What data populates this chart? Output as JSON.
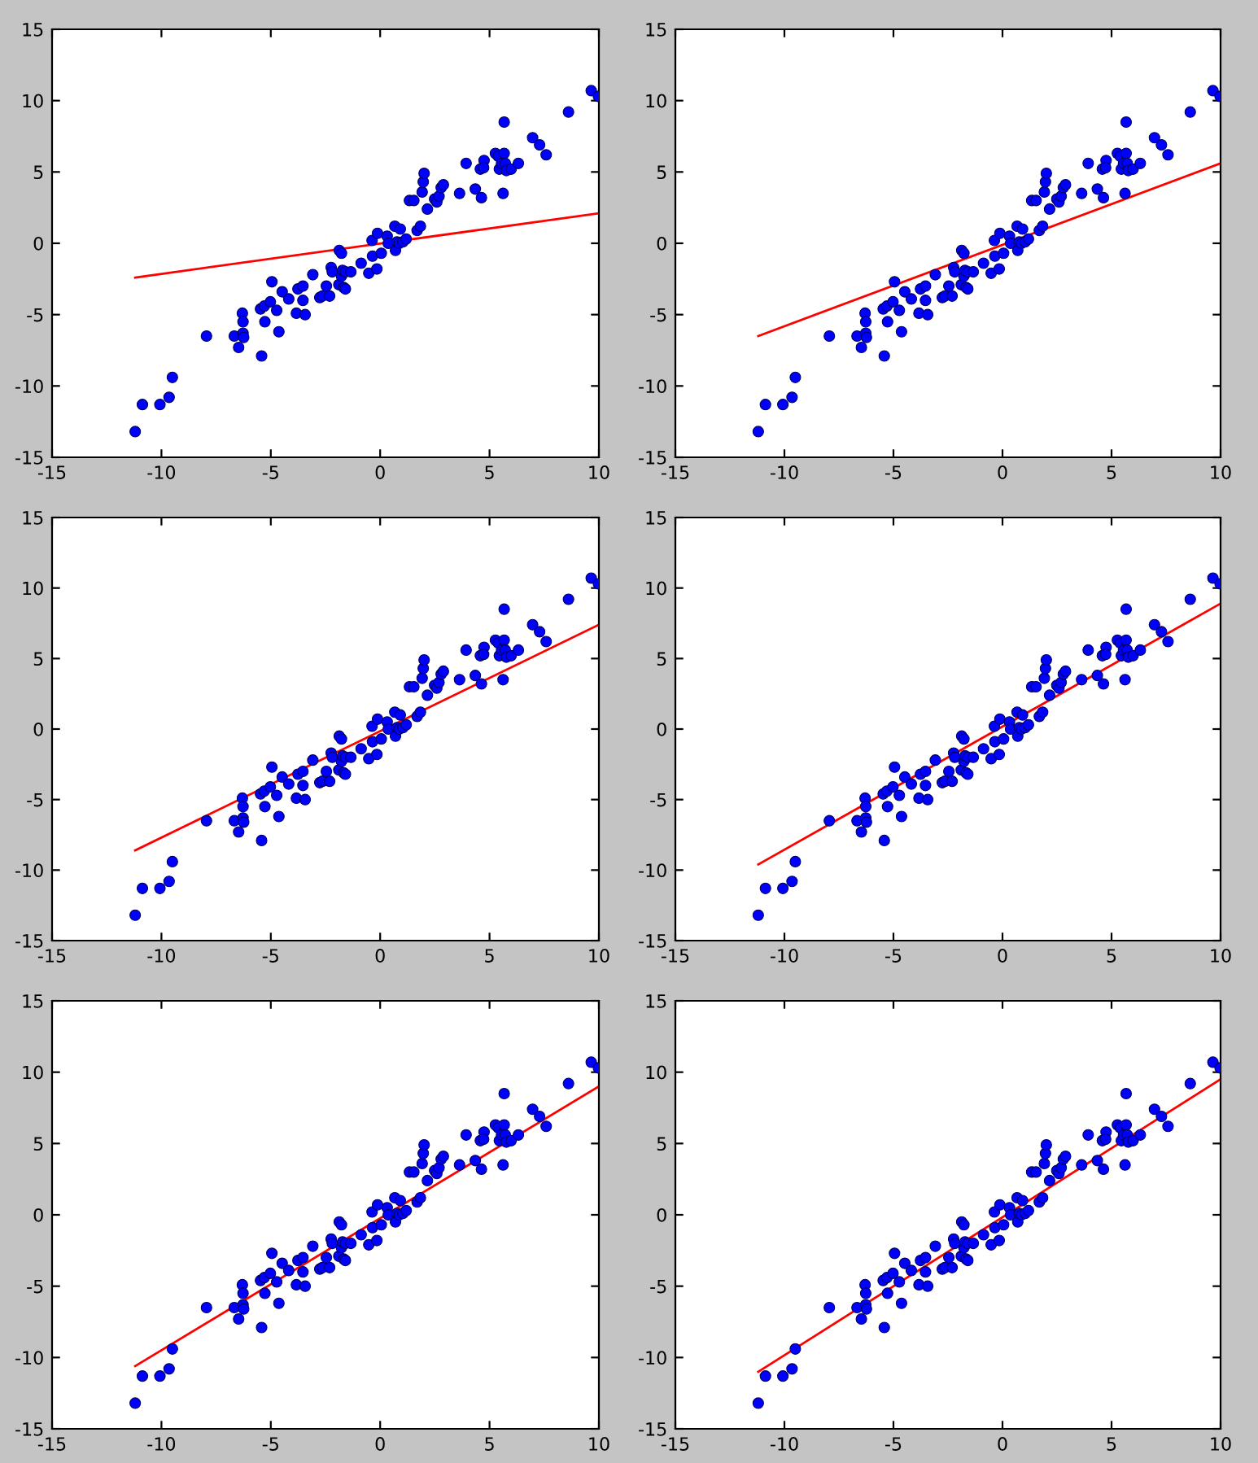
{
  "chart_data": [
    {
      "type": "scatter",
      "xlim": [
        -15,
        10
      ],
      "ylim": [
        -15,
        15
      ],
      "xticks": [
        -15,
        -10,
        -5,
        0,
        5,
        10
      ],
      "yticks": [
        -15,
        -10,
        -5,
        0,
        5,
        10,
        15
      ],
      "grid": false,
      "series": [
        {
          "marker": "circle",
          "color": "#0000ff",
          "x": [
            -11.2,
            -10.87,
            -10.07,
            -9.65,
            -9.5,
            -7.94,
            -6.67,
            -6.47,
            -6.3,
            -6.27,
            -6.27,
            -6.24,
            -5.42,
            -5.47,
            -5.3,
            -5.02,
            -4.95,
            -5.27,
            -4.73,
            -4.63,
            -4.48,
            -4.18,
            -3.83,
            -3.76,
            -3.53,
            -3.53,
            -3.43,
            -3.08,
            -2.76,
            -2.64,
            -2.46,
            -2.31,
            -2.24,
            -2.19,
            -1.87,
            -1.77,
            -1.89,
            -1.77,
            -1.72,
            -1.67,
            -1.59,
            -1.59,
            -1.34,
            -0.87,
            -0.52,
            -0.37,
            -0.35,
            -0.15,
            -0.12,
            0.05,
            0.32,
            0.37,
            0.67,
            0.7,
            0.77,
            0.92,
            0.87,
            1.04,
            1.19,
            1.34,
            1.54,
            1.69,
            1.84,
            1.92,
            1.97,
            2.01,
            2.16,
            2.49,
            2.59,
            2.69,
            2.79,
            2.89,
            3.63,
            3.93,
            4.35,
            4.58,
            4.63,
            4.75,
            4.73,
            5.27,
            5.4,
            5.45,
            5.55,
            5.67,
            5.67,
            5.62,
            5.72,
            5.77,
            5.99,
            6.32,
            6.97,
            7.29,
            7.59,
            8.61,
            9.65,
            9.98
          ],
          "values": [
            -13.2,
            -11.3,
            -11.3,
            -10.8,
            -9.4,
            -6.5,
            -6.5,
            -7.3,
            -4.9,
            -5.5,
            -6.3,
            -6.6,
            -7.9,
            -4.6,
            -4.4,
            -4.1,
            -2.7,
            -5.5,
            -4.7,
            -6.2,
            -3.4,
            -3.9,
            -4.9,
            -3.2,
            -3.0,
            -4.0,
            -5.0,
            -2.2,
            -3.8,
            -3.7,
            -3.0,
            -3.7,
            -1.7,
            -2.0,
            -0.5,
            -0.7,
            -2.9,
            -2.3,
            -1.9,
            -3.1,
            -3.2,
            -2.0,
            -2.0,
            -1.4,
            -2.1,
            0.2,
            -0.9,
            -1.8,
            0.7,
            -0.7,
            0.5,
            0.0,
            1.2,
            -0.5,
            0.1,
            1.0,
            0.0,
            0.1,
            0.3,
            3.0,
            3.0,
            0.9,
            1.2,
            3.6,
            4.3,
            4.9,
            2.4,
            3.1,
            2.9,
            3.3,
            3.9,
            4.1,
            3.5,
            5.6,
            3.8,
            5.2,
            3.2,
            5.8,
            5.3,
            6.3,
            6.1,
            5.2,
            5.6,
            6.3,
            8.5,
            3.5,
            5.6,
            5.1,
            5.2,
            5.6,
            7.4,
            6.9,
            6.2,
            9.2,
            10.7,
            10.3
          ]
        },
        {
          "type": "line",
          "marker": "none",
          "color": "#ff0000",
          "x": [
            -11.2,
            10
          ],
          "values": [
            -2.4,
            2.1
          ]
        }
      ]
    },
    {
      "type": "scatter",
      "xlim": [
        -15,
        10
      ],
      "ylim": [
        -15,
        15
      ],
      "xticks": [
        -15,
        -10,
        -5,
        0,
        5,
        10
      ],
      "yticks": [
        -15,
        -10,
        -5,
        0,
        5,
        10,
        15
      ],
      "grid": false,
      "series": [
        {
          "marker": "circle",
          "color": "#0000ff",
          "x": [
            -11.2,
            -10.87,
            -10.07,
            -9.65,
            -9.5,
            -7.94,
            -6.67,
            -6.47,
            -6.3,
            -6.27,
            -6.27,
            -6.24,
            -5.42,
            -5.47,
            -5.3,
            -5.02,
            -4.95,
            -5.27,
            -4.73,
            -4.63,
            -4.48,
            -4.18,
            -3.83,
            -3.76,
            -3.53,
            -3.53,
            -3.43,
            -3.08,
            -2.76,
            -2.64,
            -2.46,
            -2.31,
            -2.24,
            -2.19,
            -1.87,
            -1.77,
            -1.89,
            -1.77,
            -1.72,
            -1.67,
            -1.59,
            -1.59,
            -1.34,
            -0.87,
            -0.52,
            -0.37,
            -0.35,
            -0.15,
            -0.12,
            0.05,
            0.32,
            0.37,
            0.67,
            0.7,
            0.77,
            0.92,
            0.87,
            1.04,
            1.19,
            1.34,
            1.54,
            1.69,
            1.84,
            1.92,
            1.97,
            2.01,
            2.16,
            2.49,
            2.59,
            2.69,
            2.79,
            2.89,
            3.63,
            3.93,
            4.35,
            4.58,
            4.63,
            4.75,
            4.73,
            5.27,
            5.4,
            5.45,
            5.55,
            5.67,
            5.67,
            5.62,
            5.72,
            5.77,
            5.99,
            6.32,
            6.97,
            7.29,
            7.59,
            8.61,
            9.65,
            9.98
          ],
          "values": [
            -13.2,
            -11.3,
            -11.3,
            -10.8,
            -9.4,
            -6.5,
            -6.5,
            -7.3,
            -4.9,
            -5.5,
            -6.3,
            -6.6,
            -7.9,
            -4.6,
            -4.4,
            -4.1,
            -2.7,
            -5.5,
            -4.7,
            -6.2,
            -3.4,
            -3.9,
            -4.9,
            -3.2,
            -3.0,
            -4.0,
            -5.0,
            -2.2,
            -3.8,
            -3.7,
            -3.0,
            -3.7,
            -1.7,
            -2.0,
            -0.5,
            -0.7,
            -2.9,
            -2.3,
            -1.9,
            -3.1,
            -3.2,
            -2.0,
            -2.0,
            -1.4,
            -2.1,
            0.2,
            -0.9,
            -1.8,
            0.7,
            -0.7,
            0.5,
            0.0,
            1.2,
            -0.5,
            0.1,
            1.0,
            0.0,
            0.1,
            0.3,
            3.0,
            3.0,
            0.9,
            1.2,
            3.6,
            4.3,
            4.9,
            2.4,
            3.1,
            2.9,
            3.3,
            3.9,
            4.1,
            3.5,
            5.6,
            3.8,
            5.2,
            3.2,
            5.8,
            5.3,
            6.3,
            6.1,
            5.2,
            5.6,
            6.3,
            8.5,
            3.5,
            5.6,
            5.1,
            5.2,
            5.6,
            7.4,
            6.9,
            6.2,
            9.2,
            10.7,
            10.3
          ]
        },
        {
          "type": "line",
          "marker": "none",
          "color": "#ff0000",
          "x": [
            -11.2,
            10
          ],
          "values": [
            -6.5,
            5.6
          ]
        }
      ]
    },
    {
      "type": "scatter",
      "xlim": [
        -15,
        10
      ],
      "ylim": [
        -15,
        15
      ],
      "xticks": [
        -15,
        -10,
        -5,
        0,
        5,
        10
      ],
      "yticks": [
        -15,
        -10,
        -5,
        0,
        5,
        10,
        15
      ],
      "grid": false,
      "series": [
        {
          "marker": "circle",
          "color": "#0000ff",
          "x": [
            -11.2,
            -10.87,
            -10.07,
            -9.65,
            -9.5,
            -7.94,
            -6.67,
            -6.47,
            -6.3,
            -6.27,
            -6.27,
            -6.24,
            -5.42,
            -5.47,
            -5.3,
            -5.02,
            -4.95,
            -5.27,
            -4.73,
            -4.63,
            -4.48,
            -4.18,
            -3.83,
            -3.76,
            -3.53,
            -3.53,
            -3.43,
            -3.08,
            -2.76,
            -2.64,
            -2.46,
            -2.31,
            -2.24,
            -2.19,
            -1.87,
            -1.77,
            -1.89,
            -1.77,
            -1.72,
            -1.67,
            -1.59,
            -1.59,
            -1.34,
            -0.87,
            -0.52,
            -0.37,
            -0.35,
            -0.15,
            -0.12,
            0.05,
            0.32,
            0.37,
            0.67,
            0.7,
            0.77,
            0.92,
            0.87,
            1.04,
            1.19,
            1.34,
            1.54,
            1.69,
            1.84,
            1.92,
            1.97,
            2.01,
            2.16,
            2.49,
            2.59,
            2.69,
            2.79,
            2.89,
            3.63,
            3.93,
            4.35,
            4.58,
            4.63,
            4.75,
            4.73,
            5.27,
            5.4,
            5.45,
            5.55,
            5.67,
            5.67,
            5.62,
            5.72,
            5.77,
            5.99,
            6.32,
            6.97,
            7.29,
            7.59,
            8.61,
            9.65,
            9.98
          ],
          "values": [
            -13.2,
            -11.3,
            -11.3,
            -10.8,
            -9.4,
            -6.5,
            -6.5,
            -7.3,
            -4.9,
            -5.5,
            -6.3,
            -6.6,
            -7.9,
            -4.6,
            -4.4,
            -4.1,
            -2.7,
            -5.5,
            -4.7,
            -6.2,
            -3.4,
            -3.9,
            -4.9,
            -3.2,
            -3.0,
            -4.0,
            -5.0,
            -2.2,
            -3.8,
            -3.7,
            -3.0,
            -3.7,
            -1.7,
            -2.0,
            -0.5,
            -0.7,
            -2.9,
            -2.3,
            -1.9,
            -3.1,
            -3.2,
            -2.0,
            -2.0,
            -1.4,
            -2.1,
            0.2,
            -0.9,
            -1.8,
            0.7,
            -0.7,
            0.5,
            0.0,
            1.2,
            -0.5,
            0.1,
            1.0,
            0.0,
            0.1,
            0.3,
            3.0,
            3.0,
            0.9,
            1.2,
            3.6,
            4.3,
            4.9,
            2.4,
            3.1,
            2.9,
            3.3,
            3.9,
            4.1,
            3.5,
            5.6,
            3.8,
            5.2,
            3.2,
            5.8,
            5.3,
            6.3,
            6.1,
            5.2,
            5.6,
            6.3,
            8.5,
            3.5,
            5.6,
            5.1,
            5.2,
            5.6,
            7.4,
            6.9,
            6.2,
            9.2,
            10.7,
            10.3
          ]
        },
        {
          "type": "line",
          "marker": "none",
          "color": "#ff0000",
          "x": [
            -11.2,
            10
          ],
          "values": [
            -8.6,
            7.4
          ]
        }
      ]
    },
    {
      "type": "scatter",
      "xlim": [
        -15,
        10
      ],
      "ylim": [
        -15,
        15
      ],
      "xticks": [
        -15,
        -10,
        -5,
        0,
        5,
        10
      ],
      "yticks": [
        -15,
        -10,
        -5,
        0,
        5,
        10,
        15
      ],
      "grid": false,
      "series": [
        {
          "marker": "circle",
          "color": "#0000ff",
          "x": [
            -11.2,
            -10.87,
            -10.07,
            -9.65,
            -9.5,
            -7.94,
            -6.67,
            -6.47,
            -6.3,
            -6.27,
            -6.27,
            -6.24,
            -5.42,
            -5.47,
            -5.3,
            -5.02,
            -4.95,
            -5.27,
            -4.73,
            -4.63,
            -4.48,
            -4.18,
            -3.83,
            -3.76,
            -3.53,
            -3.53,
            -3.43,
            -3.08,
            -2.76,
            -2.64,
            -2.46,
            -2.31,
            -2.24,
            -2.19,
            -1.87,
            -1.77,
            -1.89,
            -1.77,
            -1.72,
            -1.67,
            -1.59,
            -1.59,
            -1.34,
            -0.87,
            -0.52,
            -0.37,
            -0.35,
            -0.15,
            -0.12,
            0.05,
            0.32,
            0.37,
            0.67,
            0.7,
            0.77,
            0.92,
            0.87,
            1.04,
            1.19,
            1.34,
            1.54,
            1.69,
            1.84,
            1.92,
            1.97,
            2.01,
            2.16,
            2.49,
            2.59,
            2.69,
            2.79,
            2.89,
            3.63,
            3.93,
            4.35,
            4.58,
            4.63,
            4.75,
            4.73,
            5.27,
            5.4,
            5.45,
            5.55,
            5.67,
            5.67,
            5.62,
            5.72,
            5.77,
            5.99,
            6.32,
            6.97,
            7.29,
            7.59,
            8.61,
            9.65,
            9.98
          ],
          "values": [
            -13.2,
            -11.3,
            -11.3,
            -10.8,
            -9.4,
            -6.5,
            -6.5,
            -7.3,
            -4.9,
            -5.5,
            -6.3,
            -6.6,
            -7.9,
            -4.6,
            -4.4,
            -4.1,
            -2.7,
            -5.5,
            -4.7,
            -6.2,
            -3.4,
            -3.9,
            -4.9,
            -3.2,
            -3.0,
            -4.0,
            -5.0,
            -2.2,
            -3.8,
            -3.7,
            -3.0,
            -3.7,
            -1.7,
            -2.0,
            -0.5,
            -0.7,
            -2.9,
            -2.3,
            -1.9,
            -3.1,
            -3.2,
            -2.0,
            -2.0,
            -1.4,
            -2.1,
            0.2,
            -0.9,
            -1.8,
            0.7,
            -0.7,
            0.5,
            0.0,
            1.2,
            -0.5,
            0.1,
            1.0,
            0.0,
            0.1,
            0.3,
            3.0,
            3.0,
            0.9,
            1.2,
            3.6,
            4.3,
            4.9,
            2.4,
            3.1,
            2.9,
            3.3,
            3.9,
            4.1,
            3.5,
            5.6,
            3.8,
            5.2,
            3.2,
            5.8,
            5.3,
            6.3,
            6.1,
            5.2,
            5.6,
            6.3,
            8.5,
            3.5,
            5.6,
            5.1,
            5.2,
            5.6,
            7.4,
            6.9,
            6.2,
            9.2,
            10.7,
            10.3
          ]
        },
        {
          "type": "line",
          "marker": "none",
          "color": "#ff0000",
          "x": [
            -11.2,
            10
          ],
          "values": [
            -9.6,
            8.9
          ]
        }
      ]
    },
    {
      "type": "scatter",
      "xlim": [
        -15,
        10
      ],
      "ylim": [
        -15,
        15
      ],
      "xticks": [
        -15,
        -10,
        -5,
        0,
        5,
        10
      ],
      "yticks": [
        -15,
        -10,
        -5,
        0,
        5,
        10,
        15
      ],
      "grid": false,
      "series": [
        {
          "marker": "circle",
          "color": "#0000ff",
          "x": [
            -11.2,
            -10.87,
            -10.07,
            -9.65,
            -9.5,
            -7.94,
            -6.67,
            -6.47,
            -6.3,
            -6.27,
            -6.27,
            -6.24,
            -5.42,
            -5.47,
            -5.3,
            -5.02,
            -4.95,
            -5.27,
            -4.73,
            -4.63,
            -4.48,
            -4.18,
            -3.83,
            -3.76,
            -3.53,
            -3.53,
            -3.43,
            -3.08,
            -2.76,
            -2.64,
            -2.46,
            -2.31,
            -2.24,
            -2.19,
            -1.87,
            -1.77,
            -1.89,
            -1.77,
            -1.72,
            -1.67,
            -1.59,
            -1.59,
            -1.34,
            -0.87,
            -0.52,
            -0.37,
            -0.35,
            -0.15,
            -0.12,
            0.05,
            0.32,
            0.37,
            0.67,
            0.7,
            0.77,
            0.92,
            0.87,
            1.04,
            1.19,
            1.34,
            1.54,
            1.69,
            1.84,
            1.92,
            1.97,
            2.01,
            2.16,
            2.49,
            2.59,
            2.69,
            2.79,
            2.89,
            3.63,
            3.93,
            4.35,
            4.58,
            4.63,
            4.75,
            4.73,
            5.27,
            5.4,
            5.45,
            5.55,
            5.67,
            5.67,
            5.62,
            5.72,
            5.77,
            5.99,
            6.32,
            6.97,
            7.29,
            7.59,
            8.61,
            9.65,
            9.98
          ],
          "values": [
            -13.2,
            -11.3,
            -11.3,
            -10.8,
            -9.4,
            -6.5,
            -6.5,
            -7.3,
            -4.9,
            -5.5,
            -6.3,
            -6.6,
            -7.9,
            -4.6,
            -4.4,
            -4.1,
            -2.7,
            -5.5,
            -4.7,
            -6.2,
            -3.4,
            -3.9,
            -4.9,
            -3.2,
            -3.0,
            -4.0,
            -5.0,
            -2.2,
            -3.8,
            -3.7,
            -3.0,
            -3.7,
            -1.7,
            -2.0,
            -0.5,
            -0.7,
            -2.9,
            -2.3,
            -1.9,
            -3.1,
            -3.2,
            -2.0,
            -2.0,
            -1.4,
            -2.1,
            0.2,
            -0.9,
            -1.8,
            0.7,
            -0.7,
            0.5,
            0.0,
            1.2,
            -0.5,
            0.1,
            1.0,
            0.0,
            0.1,
            0.3,
            3.0,
            3.0,
            0.9,
            1.2,
            3.6,
            4.3,
            4.9,
            2.4,
            3.1,
            2.9,
            3.3,
            3.9,
            4.1,
            3.5,
            5.6,
            3.8,
            5.2,
            3.2,
            5.8,
            5.3,
            6.3,
            6.1,
            5.2,
            5.6,
            6.3,
            8.5,
            3.5,
            5.6,
            5.1,
            5.2,
            5.6,
            7.4,
            6.9,
            6.2,
            9.2,
            10.7,
            10.3
          ]
        },
        {
          "type": "line",
          "marker": "none",
          "color": "#ff0000",
          "x": [
            -11.2,
            10
          ],
          "values": [
            -10.6,
            9.0
          ]
        }
      ]
    },
    {
      "type": "scatter",
      "xlim": [
        -15,
        10
      ],
      "ylim": [
        -15,
        15
      ],
      "xticks": [
        -15,
        -10,
        -5,
        0,
        5,
        10
      ],
      "yticks": [
        -15,
        -10,
        -5,
        0,
        5,
        10,
        15
      ],
      "grid": false,
      "series": [
        {
          "marker": "circle",
          "color": "#0000ff",
          "x": [
            -11.2,
            -10.87,
            -10.07,
            -9.65,
            -9.5,
            -7.94,
            -6.67,
            -6.47,
            -6.3,
            -6.27,
            -6.27,
            -6.24,
            -5.42,
            -5.47,
            -5.3,
            -5.02,
            -4.95,
            -5.27,
            -4.73,
            -4.63,
            -4.48,
            -4.18,
            -3.83,
            -3.76,
            -3.53,
            -3.53,
            -3.43,
            -3.08,
            -2.76,
            -2.64,
            -2.46,
            -2.31,
            -2.24,
            -2.19,
            -1.87,
            -1.77,
            -1.89,
            -1.77,
            -1.72,
            -1.67,
            -1.59,
            -1.59,
            -1.34,
            -0.87,
            -0.52,
            -0.37,
            -0.35,
            -0.15,
            -0.12,
            0.05,
            0.32,
            0.37,
            0.67,
            0.7,
            0.77,
            0.92,
            0.87,
            1.04,
            1.19,
            1.34,
            1.54,
            1.69,
            1.84,
            1.92,
            1.97,
            2.01,
            2.16,
            2.49,
            2.59,
            2.69,
            2.79,
            2.89,
            3.63,
            3.93,
            4.35,
            4.58,
            4.63,
            4.75,
            4.73,
            5.27,
            5.4,
            5.45,
            5.55,
            5.67,
            5.67,
            5.62,
            5.72,
            5.77,
            5.99,
            6.32,
            6.97,
            7.29,
            7.59,
            8.61,
            9.65,
            9.98
          ],
          "values": [
            -13.2,
            -11.3,
            -11.3,
            -10.8,
            -9.4,
            -6.5,
            -6.5,
            -7.3,
            -4.9,
            -5.5,
            -6.3,
            -6.6,
            -7.9,
            -4.6,
            -4.4,
            -4.1,
            -2.7,
            -5.5,
            -4.7,
            -6.2,
            -3.4,
            -3.9,
            -4.9,
            -3.2,
            -3.0,
            -4.0,
            -5.0,
            -2.2,
            -3.8,
            -3.7,
            -3.0,
            -3.7,
            -1.7,
            -2.0,
            -0.5,
            -0.7,
            -2.9,
            -2.3,
            -1.9,
            -3.1,
            -3.2,
            -2.0,
            -2.0,
            -1.4,
            -2.1,
            0.2,
            -0.9,
            -1.8,
            0.7,
            -0.7,
            0.5,
            0.0,
            1.2,
            -0.5,
            0.1,
            1.0,
            0.0,
            0.1,
            0.3,
            3.0,
            3.0,
            0.9,
            1.2,
            3.6,
            4.3,
            4.9,
            2.4,
            3.1,
            2.9,
            3.3,
            3.9,
            4.1,
            3.5,
            5.6,
            3.8,
            5.2,
            3.2,
            5.8,
            5.3,
            6.3,
            6.1,
            5.2,
            5.6,
            6.3,
            8.5,
            3.5,
            5.6,
            5.1,
            5.2,
            5.6,
            7.4,
            6.9,
            6.2,
            9.2,
            10.7,
            10.3
          ]
        },
        {
          "type": "line",
          "marker": "none",
          "color": "#ff0000",
          "x": [
            -11.2,
            10
          ],
          "values": [
            -11.0,
            9.5
          ]
        }
      ]
    }
  ]
}
